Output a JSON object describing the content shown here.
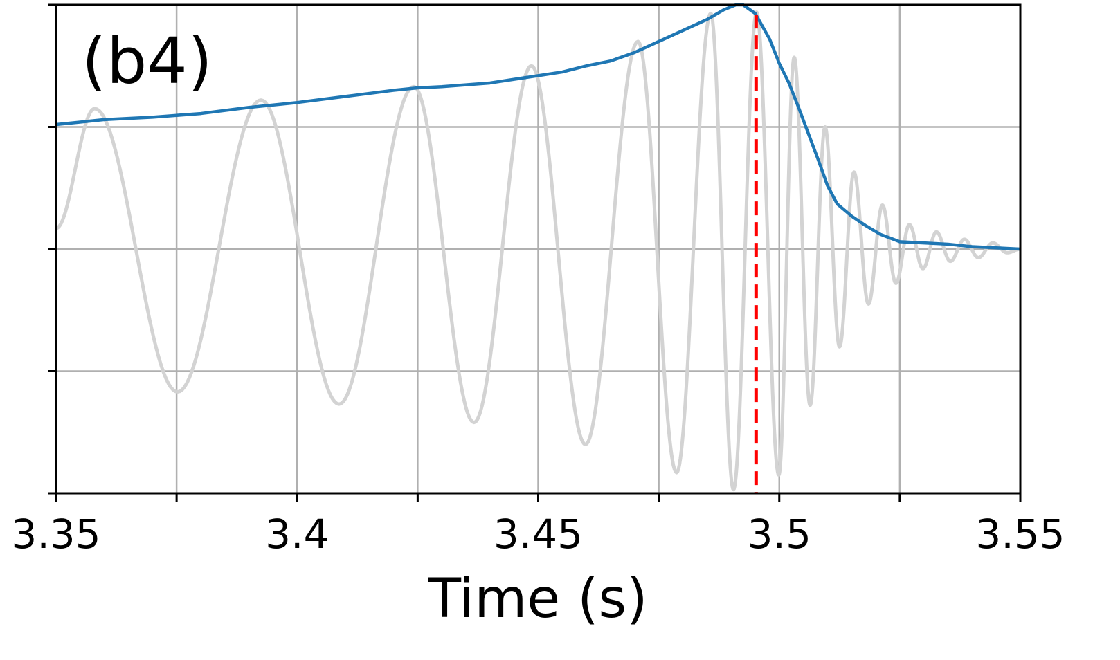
{
  "chart_data": {
    "type": "line",
    "panel_label": "(b4)",
    "title": "",
    "xlabel": "Time (s)",
    "ylabel": "",
    "xlim": [
      3.35,
      3.55
    ],
    "ylim": [
      -2,
      2
    ],
    "grid": true,
    "x_ticks": [
      3.35,
      3.375,
      3.4,
      3.425,
      3.45,
      3.475,
      3.5,
      3.525,
      3.55
    ],
    "x_tick_labels": [
      {
        "value": 3.35,
        "label": "3.35"
      },
      {
        "value": 3.4,
        "label": "3.4"
      },
      {
        "value": 3.45,
        "label": "3.45"
      },
      {
        "value": 3.5,
        "label": "3.5"
      },
      {
        "value": 3.55,
        "label": "3.55"
      }
    ],
    "y_ticks": [
      -2,
      -1,
      0,
      1,
      2
    ],
    "series": [
      {
        "role": "oscillation",
        "color": "#d3d3d3",
        "peaks": [
          {
            "t": 3.35,
            "v": 0.17
          },
          {
            "t": 3.358,
            "v": 1.15
          },
          {
            "t": 3.3752,
            "v": -1.17
          },
          {
            "t": 3.3925,
            "v": 1.22
          },
          {
            "t": 3.4087,
            "v": -1.27
          },
          {
            "t": 3.4242,
            "v": 1.33
          },
          {
            "t": 3.4367,
            "v": -1.42
          },
          {
            "t": 3.4486,
            "v": 1.5
          },
          {
            "t": 3.4598,
            "v": -1.6
          },
          {
            "t": 3.4707,
            "v": 1.7
          },
          {
            "t": 3.4787,
            "v": -1.83
          },
          {
            "t": 3.4858,
            "v": 1.93
          },
          {
            "t": 3.4905,
            "v": -1.97
          },
          {
            "t": 3.4953,
            "v": 1.94
          },
          {
            "t": 3.4999,
            "v": -1.85
          },
          {
            "t": 3.5031,
            "v": 1.57
          },
          {
            "t": 3.5064,
            "v": -1.28
          },
          {
            "t": 3.5095,
            "v": 1.0
          },
          {
            "t": 3.5125,
            "v": -0.8
          },
          {
            "t": 3.5155,
            "v": 0.63
          },
          {
            "t": 3.5185,
            "v": -0.45
          },
          {
            "t": 3.5214,
            "v": 0.36
          },
          {
            "t": 3.5242,
            "v": -0.28
          },
          {
            "t": 3.527,
            "v": 0.2
          },
          {
            "t": 3.5298,
            "v": -0.16
          },
          {
            "t": 3.5326,
            "v": 0.14
          },
          {
            "t": 3.5355,
            "v": -0.1
          },
          {
            "t": 3.5384,
            "v": 0.08
          },
          {
            "t": 3.5413,
            "v": -0.07
          },
          {
            "t": 3.5443,
            "v": 0.05
          },
          {
            "t": 3.5473,
            "v": -0.03
          },
          {
            "t": 3.55,
            "v": 0.0
          }
        ]
      },
      {
        "role": "envelope",
        "color": "#1f77b4",
        "points": [
          {
            "t": 3.35,
            "v": 1.02
          },
          {
            "t": 3.36,
            "v": 1.06
          },
          {
            "t": 3.37,
            "v": 1.08
          },
          {
            "t": 3.38,
            "v": 1.11
          },
          {
            "t": 3.39,
            "v": 1.16
          },
          {
            "t": 3.4,
            "v": 1.2
          },
          {
            "t": 3.41,
            "v": 1.25
          },
          {
            "t": 3.42,
            "v": 1.3
          },
          {
            "t": 3.425,
            "v": 1.32
          },
          {
            "t": 3.43,
            "v": 1.33
          },
          {
            "t": 3.44,
            "v": 1.36
          },
          {
            "t": 3.45,
            "v": 1.42
          },
          {
            "t": 3.455,
            "v": 1.45
          },
          {
            "t": 3.46,
            "v": 1.5
          },
          {
            "t": 3.465,
            "v": 1.54
          },
          {
            "t": 3.47,
            "v": 1.61
          },
          {
            "t": 3.475,
            "v": 1.7
          },
          {
            "t": 3.48,
            "v": 1.79
          },
          {
            "t": 3.485,
            "v": 1.88
          },
          {
            "t": 3.4885,
            "v": 1.96
          },
          {
            "t": 3.491,
            "v": 2.0
          },
          {
            "t": 3.4925,
            "v": 2.0
          },
          {
            "t": 3.495,
            "v": 1.93
          },
          {
            "t": 3.498,
            "v": 1.72
          },
          {
            "t": 3.5,
            "v": 1.52
          },
          {
            "t": 3.502,
            "v": 1.36
          },
          {
            "t": 3.504,
            "v": 1.16
          },
          {
            "t": 3.506,
            "v": 0.95
          },
          {
            "t": 3.508,
            "v": 0.74
          },
          {
            "t": 3.51,
            "v": 0.52
          },
          {
            "t": 3.512,
            "v": 0.37
          },
          {
            "t": 3.515,
            "v": 0.27
          },
          {
            "t": 3.518,
            "v": 0.19
          },
          {
            "t": 3.521,
            "v": 0.12
          },
          {
            "t": 3.525,
            "v": 0.06
          },
          {
            "t": 3.53,
            "v": 0.05
          },
          {
            "t": 3.535,
            "v": 0.04
          },
          {
            "t": 3.54,
            "v": 0.02
          },
          {
            "t": 3.545,
            "v": 0.01
          },
          {
            "t": 3.55,
            "v": 0.0
          }
        ]
      }
    ],
    "vertical_marker": {
      "x": 3.4952,
      "color": "#ff0000",
      "style": "dashed"
    }
  }
}
